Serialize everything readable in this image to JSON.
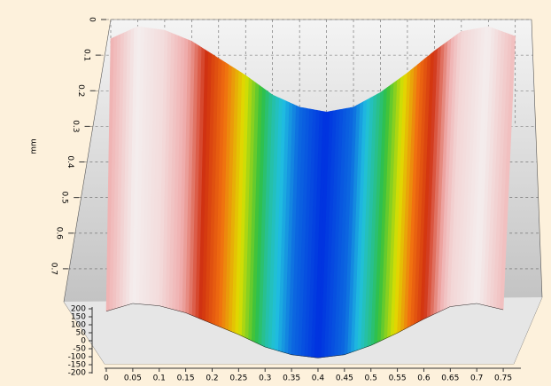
{
  "chart_data": {
    "type": "surface3d",
    "x": [
      0,
      0.05,
      0.1,
      0.15,
      0.2,
      0.25,
      0.3,
      0.35,
      0.4,
      0.45,
      0.5,
      0.55,
      0.6,
      0.65,
      0.7,
      0.75
    ],
    "values": [
      150,
      200,
      185,
      140,
      70,
      0,
      -80,
      -130,
      -150,
      -130,
      -70,
      10,
      100,
      180,
      200,
      160
    ],
    "xlim": [
      0,
      0.78
    ],
    "xticks": [
      0,
      0.05,
      0.1,
      0.15,
      0.2,
      0.25,
      0.3,
      0.35,
      0.4,
      0.45,
      0.5,
      0.55,
      0.6,
      0.65,
      0.7,
      0.75
    ],
    "ylabel": "mm",
    "ylim": [
      0,
      0.78
    ],
    "yticks": [
      0,
      0.1,
      0.2,
      0.3,
      0.4,
      0.5,
      0.6,
      0.7
    ],
    "zlim": [
      -200,
      200
    ],
    "zticks": [
      200,
      150,
      100,
      50,
      0,
      -50,
      -100,
      -150,
      -200
    ],
    "colormap": [
      "#00007a",
      "#0030e0",
      "#20c0e0",
      "#30c040",
      "#e0e000",
      "#f07010",
      "#d03010",
      "#f0b0b0",
      "#f4eeee"
    ]
  }
}
